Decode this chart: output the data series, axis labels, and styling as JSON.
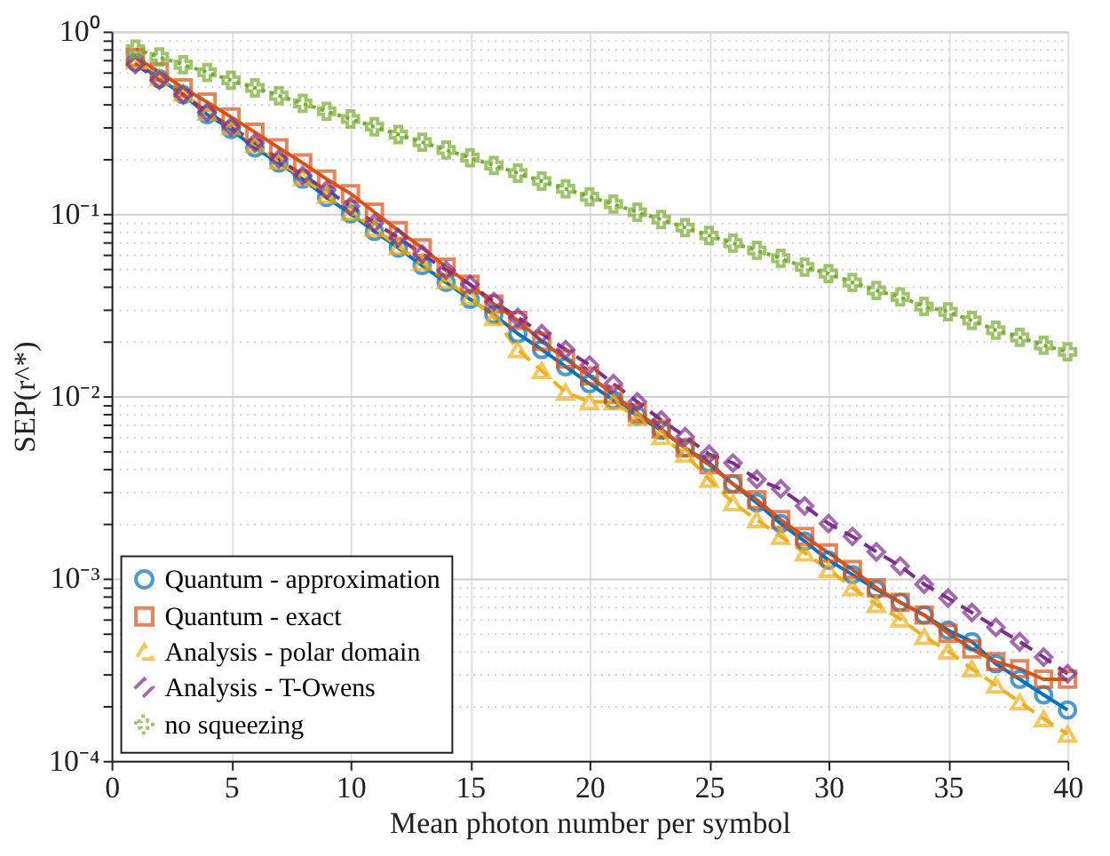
{
  "chart_data": {
    "type": "line",
    "xlabel": "Mean photon number per symbol",
    "ylabel": "SEP(r^*)",
    "log": "y",
    "grid": true,
    "legend": "bottom left",
    "x": [
      1,
      2,
      3,
      4,
      5,
      6,
      7,
      8,
      9,
      10,
      11,
      12,
      13,
      14,
      15,
      16,
      17,
      18,
      19,
      20,
      21,
      22,
      23,
      24,
      25,
      26,
      27,
      28,
      29,
      30,
      31,
      32,
      33,
      34,
      35,
      36,
      37,
      38,
      39,
      40
    ],
    "xlim": [
      0,
      40
    ],
    "xticks": [
      0,
      5,
      10,
      15,
      20,
      25,
      30,
      35,
      40
    ],
    "ylim": [
      0.0001,
      1
    ],
    "yticks": [
      {
        "value": 0.0001,
        "label": "10⁻⁴"
      },
      {
        "value": 0.0002,
        "label": null
      },
      {
        "value": 0.0003,
        "label": null
      },
      {
        "value": 0.0004,
        "label": null
      },
      {
        "value": 0.0005,
        "label": null
      },
      {
        "value": 0.0006,
        "label": null
      },
      {
        "value": 0.0007,
        "label": null
      },
      {
        "value": 0.0008,
        "label": null
      },
      {
        "value": 0.0009,
        "label": null
      },
      {
        "value": 0.001,
        "label": "10⁻³"
      },
      {
        "value": 0.002,
        "label": null
      },
      {
        "value": 0.003,
        "label": null
      },
      {
        "value": 0.004,
        "label": null
      },
      {
        "value": 0.005,
        "label": null
      },
      {
        "value": 0.006,
        "label": null
      },
      {
        "value": 0.007,
        "label": null
      },
      {
        "value": 0.008,
        "label": null
      },
      {
        "value": 0.009,
        "label": null
      },
      {
        "value": 0.01,
        "label": "10⁻²"
      },
      {
        "value": 0.02,
        "label": null
      },
      {
        "value": 0.03,
        "label": null
      },
      {
        "value": 0.04,
        "label": null
      },
      {
        "value": 0.05,
        "label": null
      },
      {
        "value": 0.06,
        "label": null
      },
      {
        "value": 0.07,
        "label": null
      },
      {
        "value": 0.08,
        "label": null
      },
      {
        "value": 0.09,
        "label": null
      },
      {
        "value": 0.1,
        "label": "10⁻¹"
      },
      {
        "value": 0.2,
        "label": null
      },
      {
        "value": 0.3,
        "label": null
      },
      {
        "value": 0.4,
        "label": null
      },
      {
        "value": 0.5,
        "label": null
      },
      {
        "value": 0.6,
        "label": null
      },
      {
        "value": 0.7,
        "label": null
      },
      {
        "value": 0.8,
        "label": null
      },
      {
        "value": 0.9,
        "label": null
      },
      {
        "value": 1,
        "label": "10⁰"
      }
    ],
    "series": [
      {
        "name": "Quantum - approximation",
        "color": "#0072bd",
        "marker": "circle",
        "line_style": "solid",
        "values": [
          0.68,
          0.55,
          0.45,
          0.35,
          0.29,
          0.23,
          0.19,
          0.155,
          0.123,
          0.1,
          0.08,
          0.065,
          0.052,
          0.042,
          0.034,
          0.028,
          0.022,
          0.018,
          0.0145,
          0.0117,
          0.0095,
          0.0078,
          0.0065,
          0.0052,
          0.0043,
          0.0033,
          0.0026,
          0.002,
          0.0016,
          0.00126,
          0.00105,
          0.00087,
          0.00074,
          0.00063,
          0.00052,
          0.00045,
          0.00034,
          0.00028,
          0.00023,
          0.00019
        ]
      },
      {
        "name": "Quantum - exact",
        "color": "#d95319",
        "marker": "square",
        "line_style": "solid",
        "values": [
          0.72,
          0.6,
          0.49,
          0.41,
          0.34,
          0.28,
          0.23,
          0.19,
          0.155,
          0.129,
          0.102,
          0.081,
          0.065,
          0.051,
          0.041,
          0.032,
          0.026,
          0.02,
          0.016,
          0.0129,
          0.0102,
          0.0081,
          0.0066,
          0.0052,
          0.0042,
          0.0033,
          0.0027,
          0.0021,
          0.0017,
          0.00138,
          0.00112,
          0.00089,
          0.00074,
          0.00063,
          0.0005,
          0.00041,
          0.00035,
          0.00032,
          0.00028,
          0.00028
        ]
      },
      {
        "name": "Analysis - polar domain",
        "color": "#edb120",
        "marker": "triangle",
        "line_style": "dashed",
        "values": [
          0.69,
          0.56,
          0.46,
          0.36,
          0.3,
          0.24,
          0.195,
          0.158,
          0.126,
          0.102,
          0.083,
          0.066,
          0.054,
          0.043,
          0.035,
          0.027,
          0.018,
          0.0138,
          0.0105,
          0.0093,
          0.0093,
          0.0076,
          0.006,
          0.0048,
          0.0035,
          0.0026,
          0.0021,
          0.0017,
          0.00138,
          0.00112,
          0.00089,
          0.00072,
          0.0006,
          0.00048,
          0.0004,
          0.00032,
          0.00026,
          0.00021,
          0.00017,
          0.00014
        ]
      },
      {
        "name": "Analysis - T-Owens",
        "color": "#7e2f8e",
        "marker": "diamond",
        "line_style": "dashed",
        "values": [
          0.66,
          0.54,
          0.45,
          0.36,
          0.3,
          0.245,
          0.2,
          0.162,
          0.135,
          0.11,
          0.089,
          0.074,
          0.06,
          0.049,
          0.041,
          0.033,
          0.027,
          0.022,
          0.018,
          0.0148,
          0.0117,
          0.0093,
          0.0074,
          0.006,
          0.0048,
          0.0043,
          0.0035,
          0.0031,
          0.0025,
          0.002,
          0.0017,
          0.0014,
          0.00117,
          0.00093,
          0.00078,
          0.00065,
          0.00054,
          0.00045,
          0.00037,
          0.0003
        ]
      },
      {
        "name": "no squeezing",
        "color": "#77ac30",
        "marker": "cross",
        "line_style": "dotted",
        "values": [
          0.8,
          0.725,
          0.657,
          0.596,
          0.54,
          0.49,
          0.444,
          0.403,
          0.365,
          0.331,
          0.3,
          0.272,
          0.247,
          0.224,
          0.203,
          0.184,
          0.167,
          0.151,
          0.137,
          0.124,
          0.113,
          0.102,
          0.093,
          0.084,
          0.076,
          0.069,
          0.063,
          0.057,
          0.051,
          0.047,
          0.042,
          0.038,
          0.035,
          0.031,
          0.029,
          0.026,
          0.023,
          0.021,
          0.019,
          0.0175
        ]
      }
    ]
  }
}
